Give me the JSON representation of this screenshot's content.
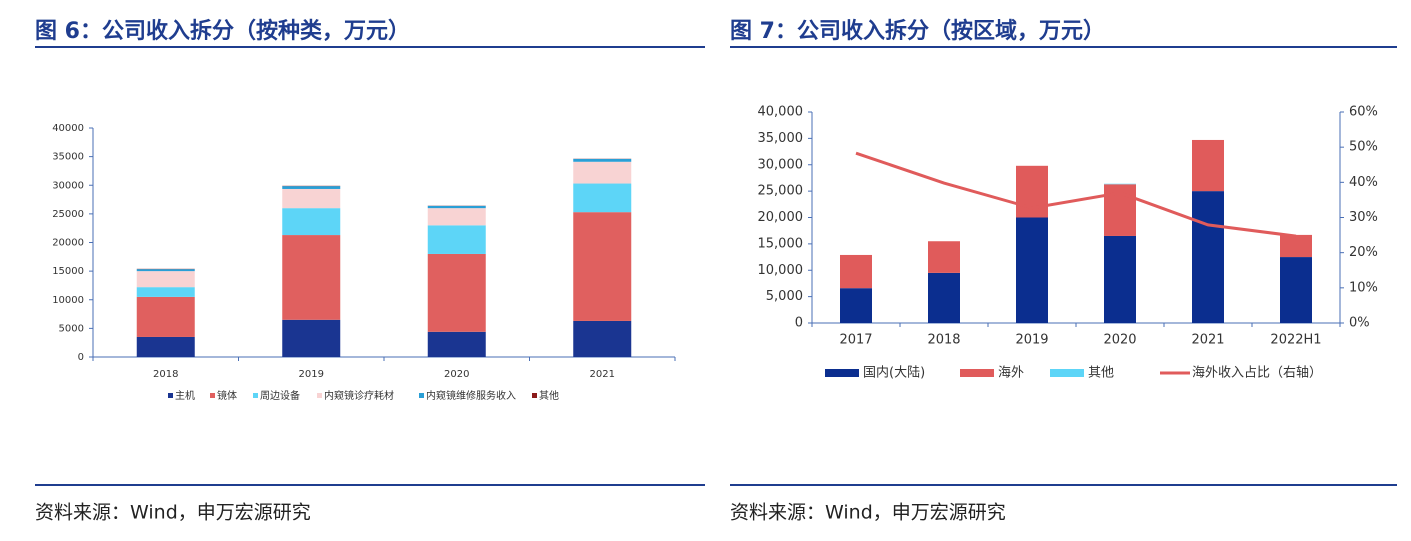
{
  "chart_data": [
    {
      "type": "bar",
      "stacked": true,
      "title": "图 6：公司收入拆分（按种类，万元）",
      "source": "资料来源：Wind，申万宏源研究",
      "categories": [
        "2018",
        "2019",
        "2020",
        "2021"
      ],
      "series": [
        {
          "name": "主机",
          "color": "#1a3591",
          "values": [
            3500,
            6500,
            4400,
            6300
          ]
        },
        {
          "name": "镜体",
          "color": "#e0605f",
          "values": [
            7000,
            14800,
            13600,
            19000
          ]
        },
        {
          "name": "周边设备",
          "color": "#5dd5f7",
          "values": [
            1700,
            4700,
            5000,
            5000
          ]
        },
        {
          "name": "内窥镜诊疗耗材",
          "color": "#f8d3d3",
          "values": [
            2800,
            3350,
            3000,
            3800
          ]
        },
        {
          "name": "内窥镜维修服务收入",
          "color": "#2a9fd6",
          "values": [
            350,
            500,
            400,
            500
          ]
        },
        {
          "name": "其他",
          "color": "#8b1a1a",
          "values": [
            50,
            50,
            30,
            30
          ]
        }
      ],
      "ylim": [
        0,
        40000
      ],
      "yticks": [
        0,
        5000,
        10000,
        15000,
        20000,
        25000,
        30000,
        35000,
        40000
      ],
      "grid": false
    },
    {
      "type": "bar",
      "stacked": true,
      "title": "图 7：公司收入拆分（按区域，万元）",
      "source": "资料来源：Wind，申万宏源研究",
      "categories": [
        "2017",
        "2018",
        "2019",
        "2020",
        "2021",
        "2022H1"
      ],
      "series": [
        {
          "name": "国内(大陆)",
          "color": "#0b2e8f",
          "values": [
            6600,
            9500,
            20000,
            16500,
            25000,
            12500
          ]
        },
        {
          "name": "海外",
          "color": "#e05b5b",
          "values": [
            6300,
            6000,
            9800,
            9800,
            9700,
            4200
          ]
        },
        {
          "name": "其他",
          "color": "#5dd5f7",
          "values": [
            0,
            0,
            0,
            100,
            0,
            0
          ]
        },
        {
          "name": "海外收入占比（右轴）",
          "color": "#e05b5b",
          "type": "line",
          "axis": "y2",
          "values": [
            48.3,
            39.8,
            32.7,
            37,
            27.9,
            24.7
          ]
        }
      ],
      "ylim": [
        0,
        40000
      ],
      "yticks": [
        0,
        {
          "value": 5000,
          "label": "5,000"
        },
        {
          "value": 10000,
          "label": "10,000"
        },
        {
          "value": 15000,
          "label": "15,000"
        },
        {
          "value": 20000,
          "label": "20,000"
        },
        {
          "value": 25000,
          "label": "25,000"
        },
        {
          "value": 30000,
          "label": "30,000"
        },
        {
          "value": 35000,
          "label": "35,000"
        },
        {
          "value": 40000,
          "label": "40,000"
        }
      ],
      "y2lim": [
        0,
        60
      ],
      "y2ticks": [
        {
          "value": 0,
          "label": "0%"
        },
        {
          "value": 10,
          "label": "10%"
        },
        {
          "value": 20,
          "label": "20%"
        },
        {
          "value": 30,
          "label": "30%"
        },
        {
          "value": 40,
          "label": "40%"
        },
        {
          "value": 50,
          "label": "50%"
        },
        {
          "value": 60,
          "label": "60%"
        }
      ],
      "grid": false
    }
  ]
}
